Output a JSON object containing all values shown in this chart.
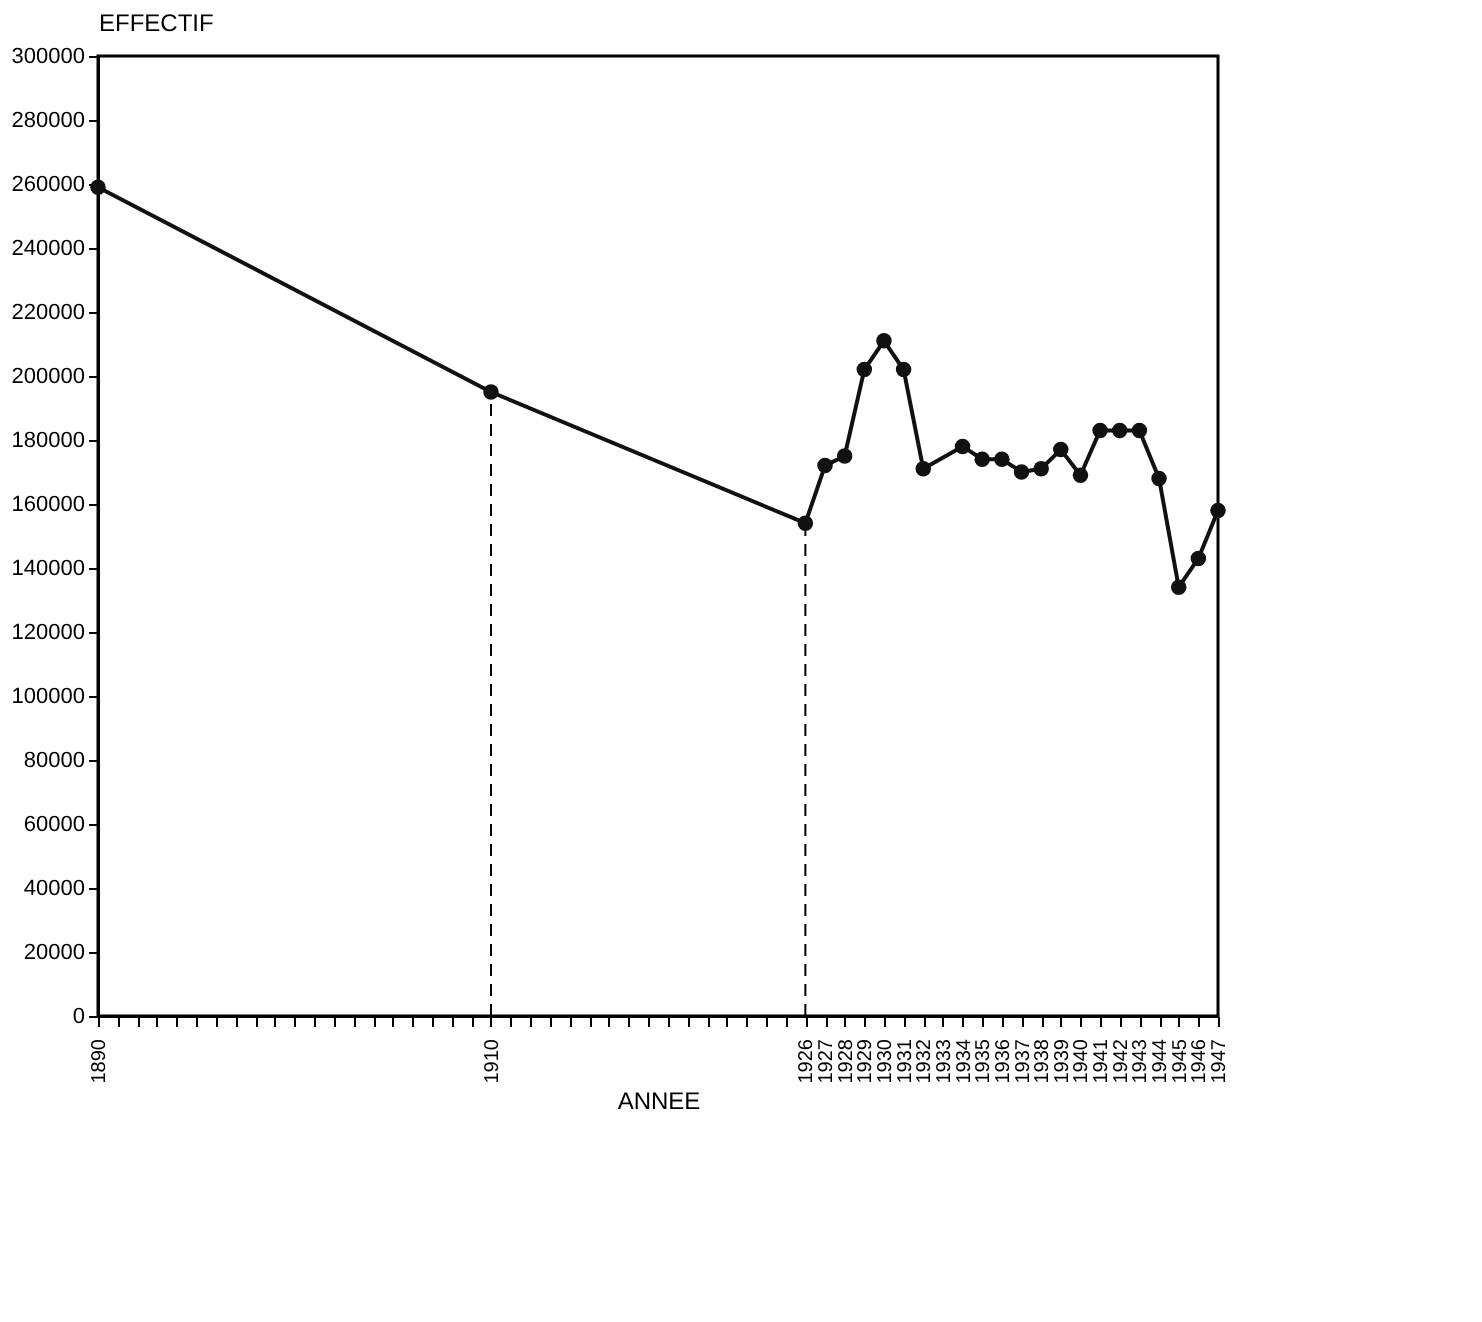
{
  "chart_data": {
    "type": "line",
    "xlabel": "ANNEE",
    "ylabel": "EFFECTIF",
    "x": [
      1890,
      1910,
      1926,
      1927,
      1928,
      1929,
      1930,
      1931,
      1932,
      1934,
      1935,
      1936,
      1937,
      1938,
      1939,
      1940,
      1941,
      1942,
      1943,
      1944,
      1945,
      1946,
      1947
    ],
    "series": [
      {
        "color": "#111111",
        "values": [
          259000,
          195000,
          154000,
          172000,
          175000,
          202000,
          211000,
          202000,
          171000,
          178000,
          174000,
          174000,
          170000,
          171000,
          177000,
          169000,
          183000,
          183000,
          183000,
          168000,
          134000,
          143000,
          158000
        ]
      }
    ],
    "marker": "circle",
    "line_style": "solid",
    "grid": false,
    "xlim": [
      1890,
      1947
    ],
    "xticks": [
      1890,
      {
        "value": 1891,
        "label": null
      },
      {
        "value": 1892,
        "label": null
      },
      {
        "value": 1893,
        "label": null
      },
      {
        "value": 1894,
        "label": null
      },
      {
        "value": 1895,
        "label": null
      },
      {
        "value": 1896,
        "label": null
      },
      {
        "value": 1897,
        "label": null
      },
      {
        "value": 1898,
        "label": null
      },
      {
        "value": 1899,
        "label": null
      },
      {
        "value": 1900,
        "label": null
      },
      {
        "value": 1901,
        "label": null
      },
      {
        "value": 1902,
        "label": null
      },
      {
        "value": 1903,
        "label": null
      },
      {
        "value": 1904,
        "label": null
      },
      {
        "value": 1905,
        "label": null
      },
      {
        "value": 1906,
        "label": null
      },
      {
        "value": 1907,
        "label": null
      },
      {
        "value": 1908,
        "label": null
      },
      {
        "value": 1909,
        "label": null
      },
      1910,
      {
        "value": 1911,
        "label": null
      },
      {
        "value": 1912,
        "label": null
      },
      {
        "value": 1913,
        "label": null
      },
      {
        "value": 1914,
        "label": null
      },
      {
        "value": 1915,
        "label": null
      },
      {
        "value": 1916,
        "label": null
      },
      {
        "value": 1917,
        "label": null
      },
      {
        "value": 1918,
        "label": null
      },
      {
        "value": 1919,
        "label": null
      },
      {
        "value": 1920,
        "label": null
      },
      {
        "value": 1921,
        "label": null
      },
      {
        "value": 1922,
        "label": null
      },
      {
        "value": 1923,
        "label": null
      },
      {
        "value": 1924,
        "label": null
      },
      {
        "value": 1925,
        "label": null
      },
      1926,
      1927,
      1928,
      1929,
      1930,
      1931,
      1932,
      1933,
      1934,
      1935,
      1936,
      1937,
      1938,
      1939,
      1940,
      1941,
      1942,
      1943,
      1944,
      1945,
      1946,
      1947
    ],
    "ylim": [
      0,
      300000
    ],
    "yticks": [
      0,
      20000,
      40000,
      60000,
      80000,
      100000,
      120000,
      140000,
      160000,
      180000,
      200000,
      220000,
      240000,
      260000,
      280000,
      300000
    ],
    "ref_lines": [
      {
        "axis": "x",
        "value": 1910,
        "line_style": "dashed"
      },
      {
        "axis": "x",
        "value": 1926,
        "line_style": "dashed"
      }
    ]
  }
}
